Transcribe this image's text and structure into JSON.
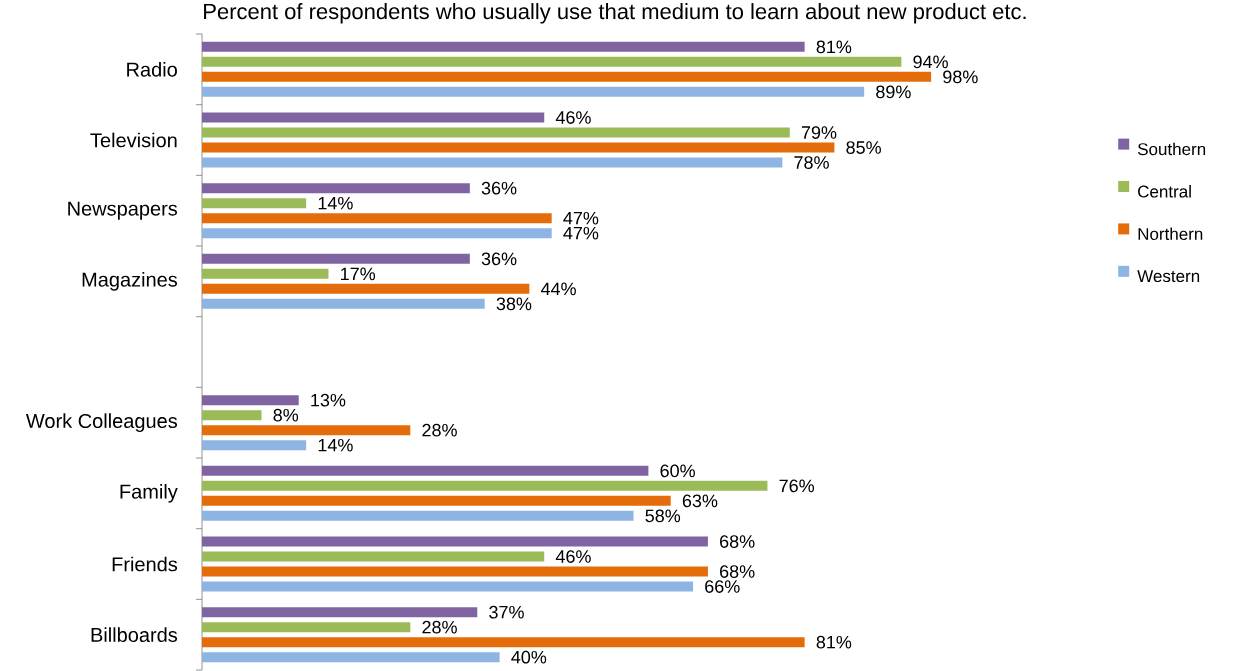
{
  "chart_data": {
    "type": "bar",
    "orientation": "horizontal",
    "title": "Percent of respondents who usually use that medium to learn about new product etc.",
    "categories": [
      "Radio",
      "Television",
      "Newspapers",
      "Magazines",
      null,
      "Work Colleagues",
      "Family",
      "Friends",
      "Billboards"
    ],
    "series": [
      {
        "name": "Southern",
        "color": "#8064a2",
        "values": [
          81,
          46,
          36,
          36,
          null,
          13,
          60,
          68,
          37
        ],
        "value_labels": [
          "81%",
          "46%",
          "36%",
          "36%",
          null,
          "13%",
          "60%",
          "68%",
          "37%"
        ]
      },
      {
        "name": "Central",
        "color": "#9bbb59",
        "values": [
          94,
          79,
          14,
          17,
          null,
          8,
          76,
          46,
          28
        ],
        "value_labels": [
          "94%",
          "79%",
          "14%",
          "17%",
          null,
          "8%",
          "76%",
          "46%",
          "28%"
        ]
      },
      {
        "name": "Northern",
        "color": "#e46c0a",
        "values": [
          98,
          85,
          47,
          44,
          null,
          28,
          63,
          68,
          81
        ],
        "value_labels": [
          "98%",
          "85%",
          "47%",
          "44%",
          null,
          "28%",
          "63%",
          "68%",
          "81%"
        ]
      },
      {
        "name": "Western",
        "color": "#8db4e2",
        "values": [
          89,
          78,
          47,
          38,
          null,
          14,
          58,
          66,
          40
        ],
        "value_labels": [
          "89%",
          "78%",
          "47%",
          "38%",
          null,
          "14%",
          "58%",
          "66%",
          "40%"
        ]
      }
    ],
    "tick_labels": "y",
    "legend": "right",
    "grid": false
  }
}
